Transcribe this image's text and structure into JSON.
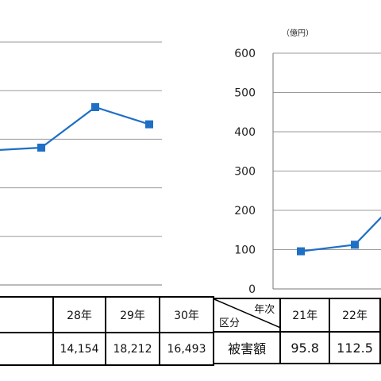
{
  "chart_data": [
    {
      "type": "line",
      "x": [
        "28年",
        "29年",
        "30年"
      ],
      "series": [
        {
          "values": [
            14154,
            18212,
            16493
          ],
          "color": "#1f6fc5"
        }
      ],
      "gridlines": 6,
      "grid": true,
      "partial": "left portion cropped"
    },
    {
      "type": "line",
      "unit": "（億円）",
      "x": [
        "21年",
        "22年"
      ],
      "series": [
        {
          "values": [
            95.8,
            112.5
          ],
          "color": "#1f6fc5"
        }
      ],
      "ylim": [
        0,
        600
      ],
      "yticks": [
        0,
        100,
        200,
        300,
        400,
        500,
        600
      ],
      "grid": true,
      "partial": "right portion cropped"
    }
  ],
  "table_left": {
    "headers": [
      "",
      "28年",
      "29年",
      "30年"
    ],
    "values": [
      "",
      "14,154",
      "18,212",
      "16,493"
    ]
  },
  "table_right": {
    "corner_top": "年次",
    "corner_bottom": "区分",
    "headers": [
      "21年",
      "22年"
    ],
    "row_label": "被害額",
    "values": [
      "95.8",
      "112.5"
    ]
  }
}
